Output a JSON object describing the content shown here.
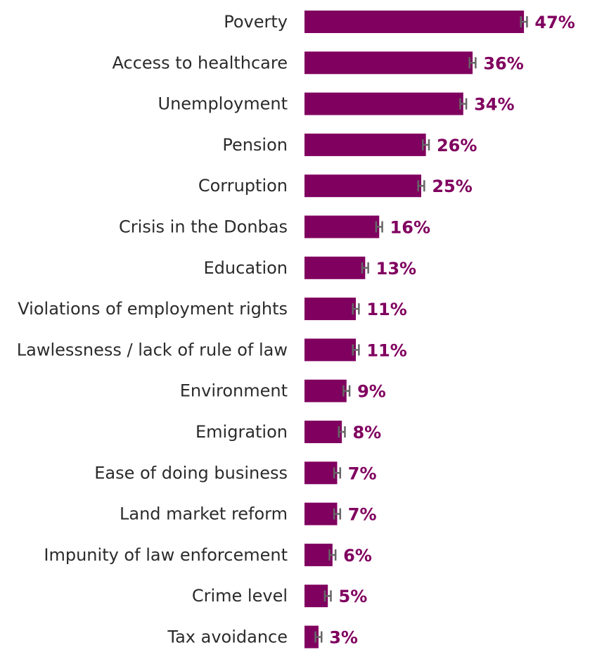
{
  "colors": {
    "bar": "#80005f",
    "value_label": "#80005f",
    "error_bar": "#666666",
    "category_label": "#2b2b2b"
  },
  "chart_data": {
    "type": "bar",
    "orientation": "horizontal",
    "title": "",
    "xlabel": "",
    "ylabel": "",
    "xlim": [
      0,
      50
    ],
    "grid": false,
    "legend": "none",
    "error_bars": true,
    "categories": [
      "Poverty",
      "Access to healthcare",
      "Unemployment",
      "Pension",
      "Corruption",
      "Crisis in the Donbas",
      "Education",
      "Violations of employment rights",
      "Lawlessness / lack of rule of law",
      "Environment",
      "Emigration",
      "Ease of doing business",
      "Land market reform",
      "Impunity of law enforcement",
      "Crime level",
      "Tax avoidance"
    ],
    "values": [
      47,
      36,
      34,
      26,
      25,
      16,
      13,
      11,
      11,
      9,
      8,
      7,
      7,
      6,
      5,
      3
    ],
    "value_labels": [
      "47%",
      "36%",
      "34%",
      "26%",
      "25%",
      "16%",
      "13%",
      "11%",
      "11%",
      "9%",
      "8%",
      "7%",
      "7%",
      "6%",
      "5%",
      "3%"
    ],
    "error_margin": 0.5
  }
}
